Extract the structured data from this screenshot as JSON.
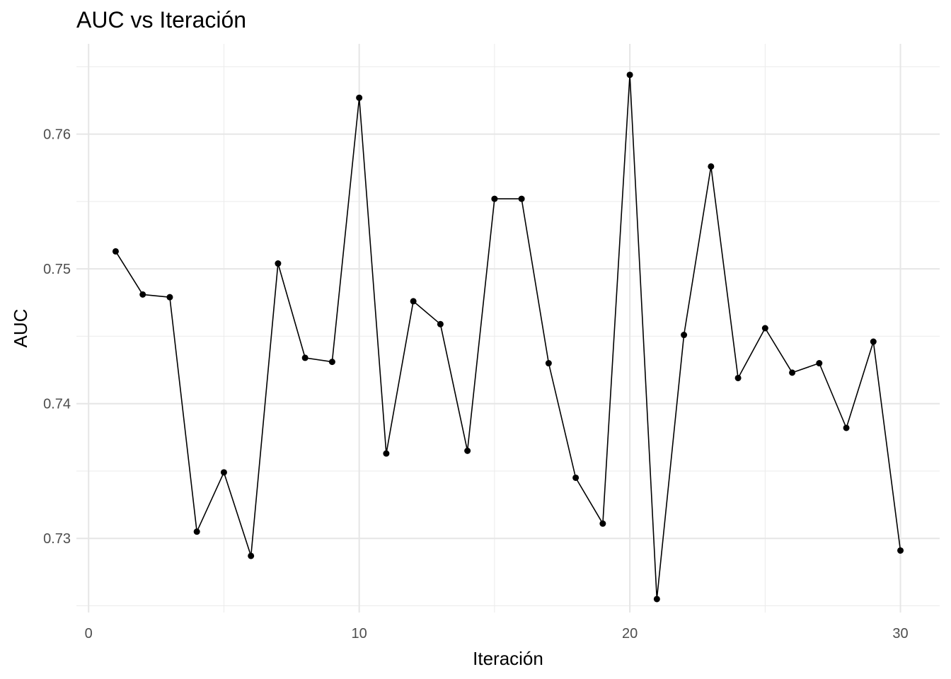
{
  "chart_data": {
    "type": "line",
    "title": "AUC vs Iteración",
    "xlabel": "Iteración",
    "ylabel": "AUC",
    "xlim": [
      -0.45,
      31.45
    ],
    "ylim": [
      0.7245,
      0.7667
    ],
    "x_ticks": [
      0,
      10,
      20,
      30
    ],
    "x_tick_labels": [
      "0",
      "10",
      "20",
      "30"
    ],
    "x_minor_ticks": [
      5,
      15,
      25
    ],
    "y_ticks": [
      0.73,
      0.74,
      0.75,
      0.76
    ],
    "y_tick_labels": [
      "0.73",
      "0.74",
      "0.75",
      "0.76"
    ],
    "y_minor_ticks": [
      0.725,
      0.735,
      0.745,
      0.755,
      0.765
    ],
    "grid": true,
    "legend": "none",
    "line_color": "#000000",
    "series": [
      {
        "x": [
          1,
          2,
          3,
          4,
          5,
          6,
          7,
          8,
          9,
          10,
          11,
          12,
          13,
          14,
          15,
          16,
          17,
          18,
          19,
          20,
          21,
          22,
          23,
          24,
          25,
          26,
          27,
          28,
          29,
          30
        ],
        "values": [
          0.7513,
          0.7481,
          0.7479,
          0.7305,
          0.7349,
          0.7287,
          0.7504,
          0.7434,
          0.7431,
          0.7627,
          0.7363,
          0.7476,
          0.7459,
          0.7365,
          0.7552,
          0.7552,
          0.743,
          0.7345,
          0.7311,
          0.7644,
          0.7255,
          0.7451,
          0.7576,
          0.7419,
          0.7456,
          0.7423,
          0.743,
          0.7382,
          0.7446,
          0.7291
        ]
      }
    ]
  }
}
